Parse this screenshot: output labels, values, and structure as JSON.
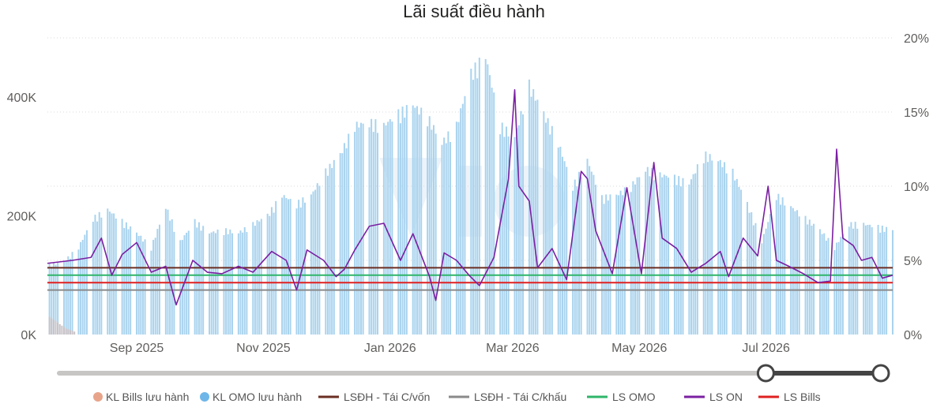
{
  "chart_data": {
    "type": "bar",
    "title": "Lãi suất điều hành",
    "x_range": [
      "2025-07-20",
      "2026-08-31"
    ],
    "x_ticks": [
      {
        "date": "2025-09-01",
        "label": "Sep 2025"
      },
      {
        "date": "2025-11-01",
        "label": "Nov 2025"
      },
      {
        "date": "2026-01-01",
        "label": "Jan 2026"
      },
      {
        "date": "2026-03-01",
        "label": "Mar 2026"
      },
      {
        "date": "2026-05-01",
        "label": "May 2026"
      },
      {
        "date": "2026-07-01",
        "label": "Jul 2026"
      }
    ],
    "y_left": {
      "min": 0,
      "max": 500000,
      "ticks": [
        {
          "v": 0,
          "label": "0K"
        },
        {
          "v": 200000,
          "label": "200K"
        },
        {
          "v": 400000,
          "label": "400K"
        }
      ]
    },
    "y_right": {
      "min": 0,
      "max": 20,
      "ticks": [
        {
          "v": 0,
          "label": "0%"
        },
        {
          "v": 5,
          "label": "5%"
        },
        {
          "v": 10,
          "label": "10%"
        },
        {
          "v": 15,
          "label": "15%"
        },
        {
          "v": 20,
          "label": "20%"
        }
      ]
    },
    "grid": true,
    "legend_position": "bottom",
    "legend": [
      {
        "label": "KL Bills lưu hành",
        "marker": "circle",
        "color": "#e8a48a"
      },
      {
        "label": "KL OMO lưu hành",
        "marker": "circle",
        "color": "#6fb6e8"
      },
      {
        "label": "LSĐH - Tái C/vốn",
        "marker": "line",
        "color": "#6b2e22"
      },
      {
        "label": "LSĐH - Tái C/khấu",
        "marker": "line",
        "color": "#8a8a8a"
      },
      {
        "label": "LS OMO",
        "marker": "line",
        "color": "#2fb56a"
      },
      {
        "label": "LS ON",
        "marker": "line",
        "color": "#7b1fa2"
      },
      {
        "label": "LS Bills",
        "marker": "line",
        "color": "#e02020"
      }
    ],
    "series_omo_volume": {
      "name": "KL OMO lưu hành",
      "axis": "left",
      "color": "#a9d3ee",
      "points": [
        [
          "2025-07-21",
          120000
        ],
        [
          "2025-07-28",
          125000
        ],
        [
          "2025-08-04",
          150000
        ],
        [
          "2025-08-11",
          200000
        ],
        [
          "2025-08-18",
          215000
        ],
        [
          "2025-08-25",
          195000
        ],
        [
          "2025-09-01",
          175000
        ],
        [
          "2025-09-08",
          150000
        ],
        [
          "2025-09-15",
          220000
        ],
        [
          "2025-09-22",
          160000
        ],
        [
          "2025-09-29",
          195000
        ],
        [
          "2025-10-06",
          175000
        ],
        [
          "2025-10-13",
          180000
        ],
        [
          "2025-10-20",
          175000
        ],
        [
          "2025-10-27",
          190000
        ],
        [
          "2025-11-03",
          205000
        ],
        [
          "2025-11-10",
          240000
        ],
        [
          "2025-11-17",
          225000
        ],
        [
          "2025-11-24",
          240000
        ],
        [
          "2025-12-01",
          280000
        ],
        [
          "2025-12-08",
          310000
        ],
        [
          "2025-12-15",
          360000
        ],
        [
          "2025-12-22",
          365000
        ],
        [
          "2025-12-29",
          360000
        ],
        [
          "2026-01-05",
          380000
        ],
        [
          "2026-01-12",
          395000
        ],
        [
          "2026-01-19",
          375000
        ],
        [
          "2026-01-26",
          330000
        ],
        [
          "2026-02-02",
          360000
        ],
        [
          "2026-02-09",
          450000
        ],
        [
          "2026-02-16",
          480000
        ],
        [
          "2026-02-23",
          360000
        ],
        [
          "2026-03-02",
          340000
        ],
        [
          "2026-03-09",
          430000
        ],
        [
          "2026-03-16",
          380000
        ],
        [
          "2026-03-23",
          330000
        ],
        [
          "2026-03-30",
          255000
        ],
        [
          "2026-04-06",
          300000
        ],
        [
          "2026-04-13",
          235000
        ],
        [
          "2026-04-20",
          240000
        ],
        [
          "2026-04-27",
          255000
        ],
        [
          "2026-05-04",
          285000
        ],
        [
          "2026-05-11",
          275000
        ],
        [
          "2026-05-18",
          270000
        ],
        [
          "2026-05-25",
          260000
        ],
        [
          "2026-06-01",
          310000
        ],
        [
          "2026-06-08",
          300000
        ],
        [
          "2026-06-15",
          280000
        ],
        [
          "2026-06-22",
          225000
        ],
        [
          "2026-06-29",
          160000
        ],
        [
          "2026-07-06",
          240000
        ],
        [
          "2026-07-13",
          220000
        ],
        [
          "2026-07-20",
          200000
        ],
        [
          "2026-07-27",
          180000
        ],
        [
          "2026-08-03",
          150000
        ],
        [
          "2026-08-10",
          190000
        ],
        [
          "2026-08-17",
          190000
        ],
        [
          "2026-08-24",
          185000
        ],
        [
          "2026-08-31",
          180000
        ]
      ]
    },
    "series_bills_volume": {
      "name": "KL Bills lưu hành",
      "axis": "left",
      "color": "#c8c2c6",
      "points": [
        [
          "2025-07-21",
          30000
        ],
        [
          "2025-07-25",
          20000
        ],
        [
          "2025-07-29",
          10000
        ],
        [
          "2025-08-02",
          5000
        ]
      ]
    },
    "series_ls_on": {
      "name": "LS ON",
      "axis": "right",
      "color": "#7b1fa2",
      "points": [
        [
          "2025-07-20",
          4.8
        ],
        [
          "2025-08-01",
          5.0
        ],
        [
          "2025-08-10",
          5.2
        ],
        [
          "2025-08-15",
          6.5
        ],
        [
          "2025-08-20",
          4.0
        ],
        [
          "2025-08-25",
          5.4
        ],
        [
          "2025-09-01",
          6.2
        ],
        [
          "2025-09-08",
          4.2
        ],
        [
          "2025-09-15",
          4.6
        ],
        [
          "2025-09-20",
          2.0
        ],
        [
          "2025-09-28",
          5.0
        ],
        [
          "2025-10-05",
          4.2
        ],
        [
          "2025-10-12",
          4.1
        ],
        [
          "2025-10-20",
          4.6
        ],
        [
          "2025-10-27",
          4.2
        ],
        [
          "2025-11-05",
          5.6
        ],
        [
          "2025-11-12",
          5.0
        ],
        [
          "2025-11-17",
          3.0
        ],
        [
          "2025-11-22",
          5.7
        ],
        [
          "2025-11-30",
          5.0
        ],
        [
          "2025-12-06",
          3.9
        ],
        [
          "2025-12-10",
          4.4
        ],
        [
          "2025-12-15",
          5.7
        ],
        [
          "2025-12-22",
          7.3
        ],
        [
          "2025-12-29",
          7.5
        ],
        [
          "2026-01-06",
          5.0
        ],
        [
          "2026-01-12",
          6.8
        ],
        [
          "2026-01-20",
          3.9
        ],
        [
          "2026-01-23",
          2.3
        ],
        [
          "2026-01-27",
          5.5
        ],
        [
          "2026-02-02",
          5.0
        ],
        [
          "2026-02-08",
          4.0
        ],
        [
          "2026-02-13",
          3.3
        ],
        [
          "2026-02-20",
          5.2
        ],
        [
          "2026-02-27",
          10.5
        ],
        [
          "2026-03-02",
          16.5
        ],
        [
          "2026-03-04",
          10.0
        ],
        [
          "2026-03-09",
          9.0
        ],
        [
          "2026-03-13",
          4.5
        ],
        [
          "2026-03-20",
          5.8
        ],
        [
          "2026-03-27",
          3.7
        ],
        [
          "2026-04-03",
          11.0
        ],
        [
          "2026-04-06",
          10.5
        ],
        [
          "2026-04-10",
          7.0
        ],
        [
          "2026-04-18",
          4.1
        ],
        [
          "2026-04-25",
          9.9
        ],
        [
          "2026-05-02",
          4.1
        ],
        [
          "2026-05-08",
          11.6
        ],
        [
          "2026-05-12",
          6.5
        ],
        [
          "2026-05-19",
          5.8
        ],
        [
          "2026-05-26",
          4.2
        ],
        [
          "2026-06-02",
          4.8
        ],
        [
          "2026-06-09",
          5.6
        ],
        [
          "2026-06-13",
          3.9
        ],
        [
          "2026-06-20",
          6.5
        ],
        [
          "2026-06-27",
          5.3
        ],
        [
          "2026-07-02",
          10.0
        ],
        [
          "2026-07-06",
          5.0
        ],
        [
          "2026-07-12",
          4.6
        ],
        [
          "2026-07-19",
          4.1
        ],
        [
          "2026-07-26",
          3.5
        ],
        [
          "2026-08-01",
          3.6
        ],
        [
          "2026-08-04",
          12.5
        ],
        [
          "2026-08-07",
          6.5
        ],
        [
          "2026-08-12",
          6.0
        ],
        [
          "2026-08-16",
          5.0
        ],
        [
          "2026-08-21",
          5.2
        ],
        [
          "2026-08-26",
          3.8
        ],
        [
          "2026-08-31",
          4.0
        ]
      ]
    },
    "series_ls_omo": {
      "name": "LS OMO",
      "axis": "right",
      "color": "#2fb56a",
      "points": [
        [
          "2025-07-20",
          4.0
        ],
        [
          "2026-08-31",
          4.0
        ]
      ]
    },
    "series_ls_bills": {
      "name": "LS Bills",
      "axis": "right",
      "color": "#e02020",
      "points": [
        [
          "2025-07-20",
          3.5
        ],
        [
          "2026-08-31",
          3.5
        ]
      ]
    },
    "series_lsdh_tai_cvon": {
      "name": "LSĐH - Tái C/vốn",
      "axis": "right",
      "color": "#6b2e22",
      "points": [
        [
          "2025-07-20",
          4.5
        ],
        [
          "2026-08-31",
          4.5
        ]
      ]
    },
    "series_lsdh_tai_ckhau": {
      "name": "LSĐH - Tái C/khấu",
      "axis": "right",
      "color": "#8a8a8a",
      "points": [
        [
          "2025-07-20",
          3.0
        ],
        [
          "2026-08-31",
          3.0
        ]
      ]
    },
    "range_slider": {
      "start": 0.86,
      "end": 1.0
    }
  }
}
